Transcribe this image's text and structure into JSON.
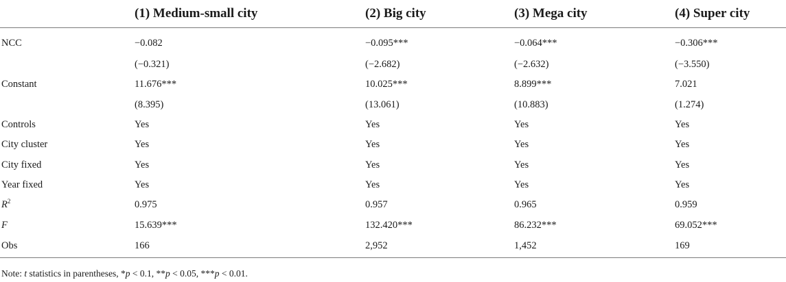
{
  "table": {
    "headers": [
      "",
      "(1) Medium-small city",
      "(2) Big city",
      "(3) Mega city",
      "(4) Super city"
    ],
    "rows": [
      {
        "label": "NCC",
        "values": [
          "−0.082",
          "−0.095***",
          "−0.064***",
          "−0.306***"
        ]
      },
      {
        "label": "",
        "values": [
          "(−0.321)",
          "(−2.682)",
          "(−2.632)",
          "(−3.550)"
        ]
      },
      {
        "label": "Constant",
        "values": [
          "11.676***",
          "10.025***",
          "8.899***",
          "7.021"
        ]
      },
      {
        "label": "",
        "values": [
          "(8.395)",
          "(13.061)",
          "(10.883)",
          "(1.274)"
        ]
      },
      {
        "label": "Controls",
        "values": [
          "Yes",
          "Yes",
          "Yes",
          "Yes"
        ]
      },
      {
        "label": "City cluster",
        "values": [
          "Yes",
          "Yes",
          "Yes",
          "Yes"
        ]
      },
      {
        "label": "City fixed",
        "values": [
          "Yes",
          "Yes",
          "Yes",
          "Yes"
        ]
      },
      {
        "label": "Year fixed",
        "values": [
          "Yes",
          "Yes",
          "Yes",
          "Yes"
        ]
      },
      {
        "label_main": "R",
        "label_sup": "2",
        "values": [
          "0.975",
          "0.957",
          "0.965",
          "0.959"
        ]
      },
      {
        "label_main": "F",
        "values": [
          "15.639***",
          "132.420***",
          "86.232***",
          "69.052***"
        ]
      },
      {
        "label": "Obs",
        "values": [
          "166",
          "2,952",
          "1,452",
          "169"
        ]
      }
    ]
  },
  "note": {
    "prefix": "Note: ",
    "t": "t",
    "part1": " statistics in parentheses, *",
    "p1": "p",
    "part2": " < 0.1, **",
    "p2": "p",
    "part3": " < 0.05, ***",
    "p3": "p",
    "part4": " < 0.01."
  }
}
